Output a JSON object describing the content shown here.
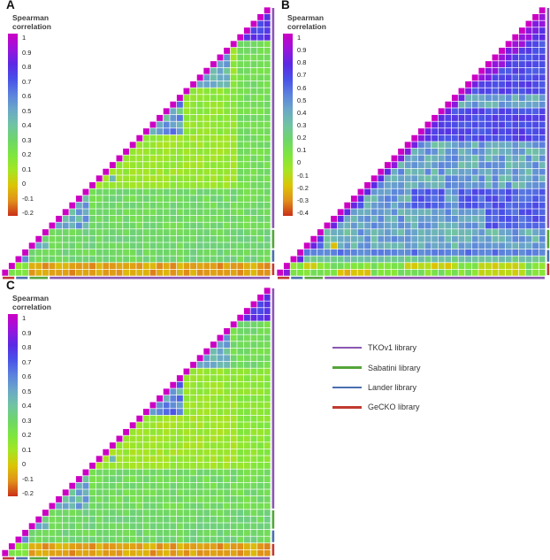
{
  "chart_data": {
    "type": "heatmap",
    "description": "Pairwise Spearman correlation triangular heatmaps, three panels",
    "scale_title": [
      "Spearman",
      "correlation"
    ],
    "color_ramp": {
      "note": "colorbar anchors from top (max correlation) to bottom (min correlation)",
      "colors": [
        "#cc00c4",
        "#9b13dc",
        "#5c28e4",
        "#4951e8",
        "#5b81de",
        "#6ba7c8",
        "#70c3a4",
        "#6ed669",
        "#7de63e",
        "#a6e523",
        "#dcc405",
        "#e0901a",
        "#c93018"
      ]
    },
    "libraries": [
      {
        "id": "tkov1",
        "label": "TKOv1 library",
        "color": "#8a56b2"
      },
      {
        "id": "sabatini",
        "label": "Sabatini library",
        "color": "#55a53a"
      },
      {
        "id": "lander",
        "label": "Lander library",
        "color": "#4a6fae"
      },
      {
        "id": "gecko",
        "label": "GeCKO library",
        "color": "#c03a30"
      }
    ],
    "sample_order_bottom_to_top": [
      {
        "library": "gecko",
        "count": 2
      },
      {
        "library": "lander",
        "count": 2
      },
      {
        "library": "sabatini",
        "count": 3
      },
      {
        "library": "tkov1",
        "count": 33
      }
    ],
    "n_samples": 40,
    "diagonal_value": 1,
    "panels": [
      {
        "label": "A",
        "vmax": 1,
        "vmin": -0.2,
        "scale_labels": [
          "1",
          "0.9",
          "0.8",
          "0.7",
          "0.6",
          "0.5",
          "0.4",
          "0.3",
          "0.2",
          "0.1",
          "0",
          "-0.1",
          "-0.2"
        ],
        "blocks": [
          {
            "r": [
              0,
              39
            ],
            "c": [
              0,
              39
            ],
            "v": 0.15,
            "j": 0.04
          },
          {
            "r": [
              2,
              6
            ],
            "c": [
              2,
              39
            ],
            "v": 0.3,
            "j": 0.05
          },
          {
            "r": [
              7,
              12
            ],
            "c": [
              7,
              39
            ],
            "v": 0.28,
            "j": 0.05
          },
          {
            "r": [
              13,
              34
            ],
            "c": [
              35,
              39
            ],
            "v": 0.26,
            "j": 0.04
          },
          {
            "r": [
              13,
              20
            ],
            "c": [
              13,
              34
            ],
            "v": 0.13,
            "j": 0.04
          },
          {
            "r": [
              21,
              27
            ],
            "c": [
              28,
              34
            ],
            "v": 0.16,
            "j": 0.04
          },
          {
            "r": [
              7,
              12
            ],
            "c": [
              7,
              12
            ],
            "v": 0.52,
            "j": 0.15
          },
          {
            "r": [
              21,
              26
            ],
            "c": [
              21,
              26
            ],
            "v": 0.5,
            "j": 0.16
          },
          {
            "r": [
              28,
              33
            ],
            "c": [
              28,
              33
            ],
            "v": 0.46,
            "j": 0.13
          },
          {
            "r": [
              35,
              39
            ],
            "c": [
              35,
              39
            ],
            "v": 0.74,
            "j": 0.07
          },
          {
            "r": [
              2,
              3
            ],
            "c": [
              2,
              3
            ],
            "v": 0.55,
            "j": 0.06
          },
          {
            "r": [
              4,
              6
            ],
            "c": [
              4,
              6
            ],
            "v": 0.4,
            "j": 0.1
          },
          {
            "r": [
              14,
              14
            ],
            "c": [
              16,
              16
            ],
            "v": 0.45,
            "j": 0
          },
          {
            "r": [
              0,
              1
            ],
            "c": [
              0,
              39
            ],
            "v": -0.07,
            "j": 0.05
          },
          {
            "r": [
              0,
              1
            ],
            "c": [
              0,
              3
            ],
            "v": 0.2,
            "j": 0.06
          }
        ]
      },
      {
        "label": "B",
        "vmax": 1,
        "vmin": -0.4,
        "scale_labels": [
          "1",
          "0.9",
          "0.8",
          "0.7",
          "0.6",
          "0.5",
          "0.4",
          "0.3",
          "0.2",
          "0.1",
          "0",
          "-0.1",
          "-0.2",
          "-0.3",
          "-0.4"
        ],
        "blocks": [
          {
            "r": [
              0,
              39
            ],
            "c": [
              0,
              39
            ],
            "v": 0.62,
            "j": 0.07
          },
          {
            "r": [
              7,
              9
            ],
            "c": [
              7,
              30
            ],
            "v": 0.42,
            "j": 0.1
          },
          {
            "r": [
              13,
              19
            ],
            "c": [
              13,
              39
            ],
            "v": 0.42,
            "j": 0.12
          },
          {
            "r": [
              7,
              12
            ],
            "c": [
              13,
              19
            ],
            "v": 0.42,
            "j": 0.12
          },
          {
            "r": [
              25,
              26
            ],
            "c": [
              25,
              39
            ],
            "v": 0.42,
            "j": 0.1
          },
          {
            "r": [
              7,
              24
            ],
            "c": [
              25,
              26
            ],
            "v": 0.44,
            "j": 0.1
          },
          {
            "r": [
              20,
              24
            ],
            "c": [
              20,
              39
            ],
            "v": 0.68,
            "j": 0.06
          },
          {
            "r": [
              27,
              34
            ],
            "c": [
              27,
              39
            ],
            "v": 0.67,
            "j": 0.06
          },
          {
            "r": [
              35,
              39
            ],
            "c": [
              35,
              39
            ],
            "v": 0.73,
            "j": 0.05
          },
          {
            "d": [
              1,
              1
            ],
            "r": [
              7,
              39
            ],
            "c": [
              7,
              39
            ],
            "v": 0.8,
            "j": 0.06
          },
          {
            "d": [
              1,
              2
            ],
            "r": [
              29,
              39
            ],
            "c": [
              29,
              39
            ],
            "v": 0.85,
            "j": 0.05
          },
          {
            "r": [
              4,
              6
            ],
            "c": [
              4,
              39
            ],
            "v": 0.4,
            "j": 0.12
          },
          {
            "r": [
              4,
              6
            ],
            "c": [
              4,
              6
            ],
            "v": 0.55,
            "j": 0.1
          },
          {
            "d": [
              1,
              1
            ],
            "r": [
              4,
              6
            ],
            "c": [
              4,
              6
            ],
            "v": 0.75,
            "j": 0.04
          },
          {
            "r": [
              2,
              2
            ],
            "c": [
              2,
              39
            ],
            "v": 0.28,
            "j": 0.06
          },
          {
            "r": [
              3,
              3
            ],
            "c": [
              3,
              39
            ],
            "v": 0.55,
            "j": 0.06
          },
          {
            "r": [
              2,
              3
            ],
            "c": [
              2,
              3
            ],
            "v": 0.78,
            "j": 0.04
          },
          {
            "r": [
              0,
              1
            ],
            "c": [
              0,
              39
            ],
            "v": 0.08,
            "j": 0.09
          },
          {
            "r": [
              0,
              0
            ],
            "c": [
              9,
              13
            ],
            "v": -0.17,
            "j": 0.05
          },
          {
            "r": [
              1,
              1
            ],
            "c": [
              4,
              5
            ],
            "v": -0.15,
            "j": 0.03
          },
          {
            "r": [
              1,
              1
            ],
            "c": [
              19,
              26
            ],
            "v": -0.13,
            "j": 0.05
          },
          {
            "r": [
              0,
              1
            ],
            "c": [
              30,
              36
            ],
            "v": -0.1,
            "j": 0.05
          },
          {
            "r": [
              0,
              0
            ],
            "c": [
              1,
              1
            ],
            "v": 0.85,
            "j": 0
          },
          {
            "r": [
              4,
              4
            ],
            "c": [
              8,
              8
            ],
            "v": -0.18,
            "j": 0
          }
        ]
      },
      {
        "label": "C",
        "vmax": 1,
        "vmin": -0.2,
        "scale_labels": [
          "1",
          "0.9",
          "0.8",
          "0.7",
          "0.6",
          "0.5",
          "0.4",
          "0.3",
          "0.2",
          "0.1",
          "0",
          "-0.1",
          "-0.2"
        ],
        "blocks": [
          {
            "r": [
              0,
              39
            ],
            "c": [
              0,
              39
            ],
            "v": 0.14,
            "j": 0.04
          },
          {
            "r": [
              2,
              6
            ],
            "c": [
              2,
              39
            ],
            "v": 0.3,
            "j": 0.05
          },
          {
            "r": [
              7,
              12
            ],
            "c": [
              7,
              39
            ],
            "v": 0.27,
            "j": 0.05
          },
          {
            "r": [
              28,
              34
            ],
            "c": [
              34,
              39
            ],
            "v": 0.27,
            "j": 0.05
          },
          {
            "r": [
              13,
              20
            ],
            "c": [
              13,
              34
            ],
            "v": 0.12,
            "j": 0.04
          },
          {
            "r": [
              13,
              27
            ],
            "c": [
              35,
              39
            ],
            "v": 0.17,
            "j": 0.04
          },
          {
            "r": [
              7,
              12
            ],
            "c": [
              7,
              12
            ],
            "v": 0.5,
            "j": 0.15
          },
          {
            "r": [
              21,
              26
            ],
            "c": [
              21,
              26
            ],
            "v": 0.56,
            "j": 0.14
          },
          {
            "r": [
              28,
              33
            ],
            "c": [
              28,
              33
            ],
            "v": 0.46,
            "j": 0.13
          },
          {
            "r": [
              35,
              39
            ],
            "c": [
              35,
              39
            ],
            "v": 0.75,
            "j": 0.07
          },
          {
            "r": [
              2,
              3
            ],
            "c": [
              2,
              3
            ],
            "v": 0.55,
            "j": 0.06
          },
          {
            "r": [
              4,
              6
            ],
            "c": [
              4,
              6
            ],
            "v": 0.42,
            "j": 0.1
          },
          {
            "r": [
              14,
              14
            ],
            "c": [
              16,
              16
            ],
            "v": 0.45,
            "j": 0
          },
          {
            "r": [
              0,
              1
            ],
            "c": [
              0,
              39
            ],
            "v": -0.07,
            "j": 0.05
          },
          {
            "r": [
              0,
              1
            ],
            "c": [
              0,
              3
            ],
            "v": 0.2,
            "j": 0.06
          }
        ]
      }
    ]
  }
}
